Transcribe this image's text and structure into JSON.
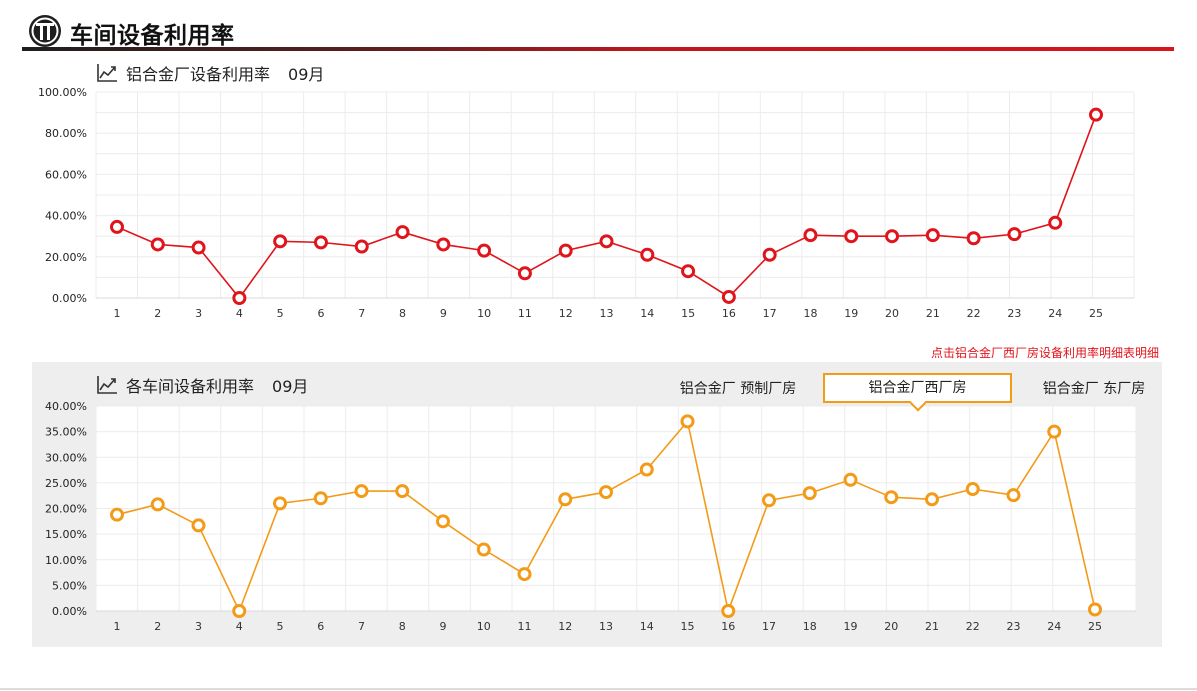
{
  "header": {
    "title": "车间设备利用率",
    "logo_icon": "gauge-logo-icon"
  },
  "top_chart": {
    "title": "铝合金厂设备利用率",
    "month": "09月",
    "icon": "line-chart-icon",
    "line_color": "#e0141b"
  },
  "detail_link": "点击铝合金厂西厂房设备利用率明细表明细",
  "bottom_chart": {
    "title": "各车间设备利用率",
    "month": "09月",
    "icon": "line-chart-icon",
    "line_color": "#f39a17",
    "tabs": [
      {
        "label": "铝合金厂 预制厂房",
        "active": false
      },
      {
        "label": "铝合金厂西厂房",
        "active": true
      },
      {
        "label": "铝合金厂 东厂房",
        "active": false
      }
    ]
  },
  "chart_data": [
    {
      "type": "line",
      "title": "铝合金厂设备利用率 09月",
      "categories": [
        "1",
        "2",
        "3",
        "4",
        "5",
        "6",
        "7",
        "8",
        "9",
        "10",
        "11",
        "12",
        "13",
        "14",
        "15",
        "16",
        "17",
        "18",
        "19",
        "20",
        "21",
        "22",
        "23",
        "24",
        "25"
      ],
      "series": [
        {
          "values": [
            34.5,
            26.0,
            24.5,
            0.0,
            27.5,
            27.0,
            25.0,
            32.0,
            26.0,
            23.0,
            12.0,
            23.0,
            27.5,
            21.0,
            13.0,
            0.5,
            21.0,
            30.5,
            30.0,
            30.0,
            30.5,
            29.0,
            31.0,
            36.5,
            89.0
          ]
        }
      ],
      "yticks": [
        "0.00%",
        "20.00%",
        "40.00%",
        "60.00%",
        "80.00%",
        "100.00%"
      ],
      "ylim": [
        0,
        100
      ],
      "grid": true,
      "legend": "none"
    },
    {
      "type": "line",
      "title": "各车间设备利用率 09月",
      "categories": [
        "1",
        "2",
        "3",
        "4",
        "5",
        "6",
        "7",
        "8",
        "9",
        "10",
        "11",
        "12",
        "13",
        "14",
        "15",
        "16",
        "17",
        "18",
        "19",
        "20",
        "21",
        "22",
        "23",
        "24",
        "25"
      ],
      "series": [
        {
          "name": "铝合金厂西厂房",
          "values": [
            18.8,
            20.8,
            16.7,
            0.0,
            21.0,
            22.0,
            23.4,
            23.4,
            17.5,
            12.0,
            7.2,
            21.8,
            23.2,
            27.6,
            37.0,
            0.0,
            21.6,
            23.0,
            25.6,
            22.2,
            21.8,
            23.8,
            22.6,
            35.0,
            0.3
          ]
        }
      ],
      "yticks": [
        "0.00%",
        "5.00%",
        "10.00%",
        "15.00%",
        "20.00%",
        "25.00%",
        "30.00%",
        "35.00%",
        "40.00%"
      ],
      "ylim": [
        0,
        40
      ],
      "grid": true,
      "legend": "none"
    }
  ]
}
